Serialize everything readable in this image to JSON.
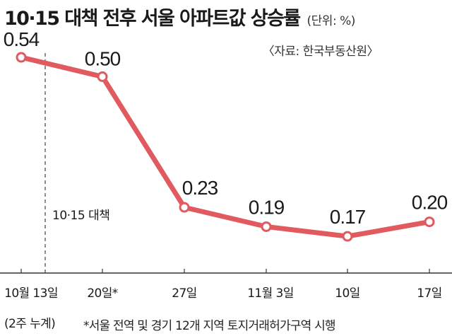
{
  "header": {
    "title": "10·15 대책 전후 서울 아파트값 상승률",
    "unit": "(단위: %)"
  },
  "source": "〈자료: 한국부동산원〉",
  "footnote": "*서울 전역 및 경기 12개 지역 토지거래허가구역 시행",
  "annotation": {
    "label": "10·15 대책",
    "at_category_index": 0
  },
  "colors": {
    "line": "#e05a60",
    "marker_fill": "#ffffff",
    "axis": "#333333",
    "dash": "#444444"
  },
  "chart_data": {
    "type": "line",
    "title": "10·15 대책 전후 서울 아파트값 상승률",
    "xlabel": "",
    "ylabel": "",
    "categories": [
      "10월 13일",
      "20일*",
      "27일",
      "11월 3일",
      "10일",
      "17일"
    ],
    "category_sublabels": [
      "(2주 누계)",
      "",
      "",
      "",
      "",
      ""
    ],
    "series": [
      {
        "values": [
          0.54,
          0.5,
          0.23,
          0.19,
          0.17,
          0.2
        ]
      }
    ],
    "value_labels": [
      "0.54",
      "0.50",
      "0.23",
      "0.19",
      "0.17",
      "0.20"
    ],
    "ylim": [
      0.1,
      0.6
    ],
    "grid": false,
    "legend": "none"
  }
}
